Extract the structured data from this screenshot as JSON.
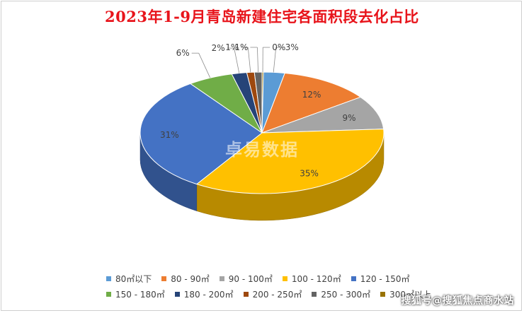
{
  "title": "2023年1-9月青岛新建住宅各面积段去化占比",
  "watermark_bottom": "搜狐号@搜狐焦点商水站",
  "watermark_center": "卓易数据",
  "chart_data": {
    "type": "pie",
    "style": "3d",
    "categories": [
      "80㎡以下",
      "80 - 90㎡",
      "90 - 100㎡",
      "100 - 120㎡",
      "120 - 150㎡",
      "150 - 180㎡",
      "180 - 200㎡",
      "200 - 250㎡",
      "250 - 300㎡",
      "300㎡以上"
    ],
    "values": [
      3,
      12,
      9,
      35,
      31,
      6,
      2,
      1,
      1,
      0
    ],
    "labels": [
      "3%",
      "12%",
      "9%",
      "35%",
      "31%",
      "6%",
      "2%",
      "1%",
      "1%",
      "0%"
    ],
    "colors": [
      "#5b9bd5",
      "#ed7d31",
      "#a5a5a5",
      "#ffc000",
      "#4472c4",
      "#70ad47",
      "#264478",
      "#9e480e",
      "#636363",
      "#997300"
    ],
    "legend_position": "bottom"
  }
}
